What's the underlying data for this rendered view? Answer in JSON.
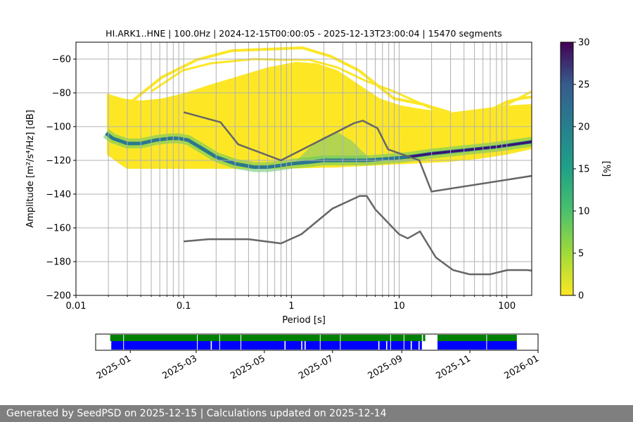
{
  "chart_data": {
    "type": "heatmap",
    "title": "HI.ARK1..HNE | 100.0Hz | 2024-12-15T00:00:05 - 2025-12-13T23:00:04 | 15470 segments",
    "xlabel": "Period [s]",
    "ylabel": "Amplitude [m²/s⁴/Hz] [dB]",
    "x_scale": "log",
    "xlim": [
      0.01,
      170
    ],
    "ylim": [
      -200,
      -50
    ],
    "x_ticks": [
      "0.01",
      "0.1",
      "1",
      "10",
      "100"
    ],
    "y_ticks": [
      "−60",
      "−80",
      "−100",
      "−120",
      "−140",
      "−160",
      "−180",
      "−200"
    ],
    "grid": true,
    "colorbar": {
      "label": "[%]",
      "range": [
        0,
        30
      ],
      "ticks": [
        "0",
        "5",
        "10",
        "15",
        "20",
        "25",
        "30"
      ],
      "colormap": "viridis_r"
    },
    "psd_mode": {
      "name": "mode",
      "x": [
        0.019,
        0.022,
        0.03,
        0.04,
        0.055,
        0.075,
        0.09,
        0.11,
        0.14,
        0.2,
        0.3,
        0.45,
        0.6,
        0.8,
        1.0,
        1.5,
        2,
        3,
        5,
        8,
        12,
        20,
        40,
        80,
        170
      ],
      "y": [
        -104,
        -107,
        -110,
        -110,
        -108,
        -107,
        -107,
        -108,
        -112,
        -118,
        -122,
        -124,
        -124,
        -123,
        -122,
        -121,
        -120,
        -120,
        -120,
        -119,
        -118,
        -116,
        -114,
        -112,
        -109
      ]
    },
    "high_noise_model": {
      "name": "NHNM",
      "x": [
        0.1,
        0.22,
        0.32,
        0.8,
        3.8,
        4.6,
        6.3,
        7.9,
        15.4,
        20,
        354.8
      ],
      "y": [
        -91.5,
        -97.4,
        -110.5,
        -120.0,
        -98.0,
        -96.5,
        -101.0,
        -113.5,
        -120.0,
        -138.5,
        -126.0
      ]
    },
    "low_noise_model": {
      "name": "NLNM",
      "x": [
        0.1,
        0.17,
        0.4,
        0.8,
        1.24,
        2.4,
        4.3,
        5.0,
        6.0,
        10.0,
        12.0,
        15.6,
        21.9,
        31.6,
        45,
        70,
        101,
        154,
        328
      ],
      "y": [
        -168.0,
        -166.7,
        -166.7,
        -169.2,
        -163.7,
        -148.6,
        -141.1,
        -141.1,
        -149.0,
        -163.8,
        -166.2,
        -162.1,
        -177.5,
        -185.0,
        -187.5,
        -187.5,
        -185.0,
        -185.0,
        -187.5
      ]
    },
    "availability": {
      "x_ticks": [
        "2025-01",
        "2025-03",
        "2025-05",
        "2025-07",
        "2025-09",
        "2025-11",
        "2026-01"
      ],
      "tick_dates": [
        "2025-01-01",
        "2025-03-01",
        "2025-05-01",
        "2025-07-01",
        "2025-09-01",
        "2025-11-01",
        "2026-01-01"
      ],
      "range": [
        "2024-12-01",
        "2026-01-01"
      ],
      "colors": {
        "data": "#0000ff",
        "processed": "#008000"
      },
      "blue_segments": [
        [
          "2024-12-15",
          "2025-03-14"
        ],
        [
          "2025-03-15",
          "2025-05-19"
        ],
        [
          "2025-05-20",
          "2025-06-03"
        ],
        [
          "2025-06-04",
          "2025-06-06"
        ],
        [
          "2025-06-07",
          "2025-08-11"
        ],
        [
          "2025-08-12",
          "2025-08-18"
        ],
        [
          "2025-08-19",
          "2025-09-09"
        ],
        [
          "2025-09-10",
          "2025-09-16"
        ],
        [
          "2025-09-17",
          "2025-09-19"
        ],
        [
          "2025-10-03",
          "2025-12-13"
        ]
      ],
      "green_segments": [
        [
          "2024-12-14",
          "2025-09-19"
        ],
        [
          "2025-09-20",
          "2025-09-22"
        ],
        [
          "2025-10-03",
          "2025-12-13"
        ]
      ],
      "gap_lines": [
        "2024-12-26",
        "2025-03-02",
        "2025-03-22",
        "2025-04-10",
        "2025-06-20",
        "2025-07-08",
        "2025-08-22",
        "2025-09-03",
        "2025-11-16"
      ]
    }
  },
  "footer_text": "Generated by SeedPSD on 2025-12-15 | Calculations updated on 2025-12-14"
}
